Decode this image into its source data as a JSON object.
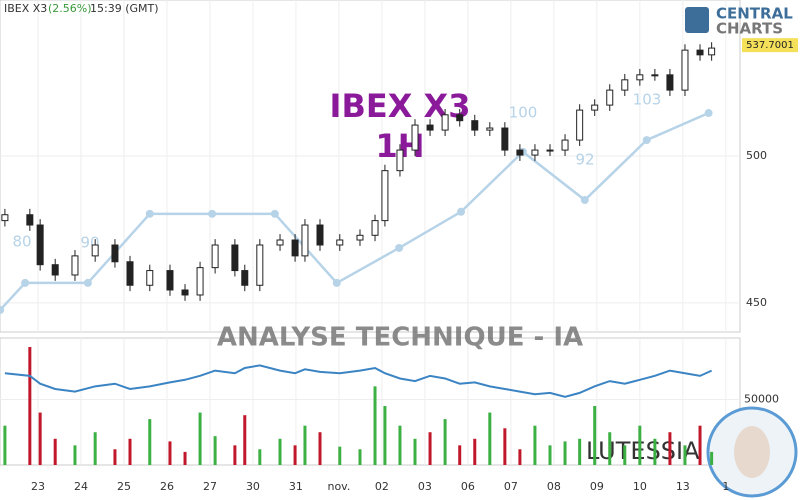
{
  "header": {
    "symbol": "IBEX X3",
    "change": "(2.56%)",
    "time": "15:39 (GMT)"
  },
  "logo": {
    "line1": "CENTRAL",
    "line2": "CHARTS"
  },
  "watermark": {
    "title": "IBEX X3",
    "timeframe": "1H",
    "caption": "ANALYSE TECHNIQUE - IA",
    "brand": "LUTESSIA"
  },
  "annotations": [
    "80",
    "90",
    "100",
    "92",
    "103"
  ],
  "chart_data": {
    "type": "candlestick",
    "x": [
      -0.77,
      -0.19,
      0.05,
      0.4,
      0.86,
      1.33,
      1.79,
      2.14,
      2.6,
      3.07,
      3.42,
      3.77,
      4.12,
      4.58,
      4.81,
      5.16,
      5.63,
      5.98,
      6.21,
      6.56,
      7.02,
      7.49,
      7.84,
      8.07,
      8.42,
      8.77,
      9.12,
      9.47,
      9.81,
      10.16,
      10.51,
      10.86,
      11.21,
      11.56,
      11.91,
      12.26,
      12.6,
      12.95,
      13.3,
      13.65,
      14,
      14.35,
      14.7,
      15.05,
      15.4,
      15.67
    ],
    "open": [
      478,
      480,
      476.5,
      463,
      459.5,
      466,
      469.7,
      464,
      456,
      461,
      454.4,
      452.7,
      462,
      469.7,
      461,
      456,
      469.7,
      471.4,
      466,
      476.5,
      469.7,
      471.4,
      473,
      478,
      495,
      502,
      510.5,
      508.8,
      514,
      512,
      508.8,
      509.5,
      502,
      500.3,
      502,
      502,
      505.4,
      515.6,
      517.3,
      522.4,
      525.9,
      527.6,
      527.6,
      522.4,
      536,
      534.4
    ],
    "high": [
      482,
      482,
      478.5,
      465,
      468,
      471.7,
      471.7,
      466,
      463,
      463,
      456.4,
      464,
      471.7,
      471.7,
      463,
      471.7,
      473.4,
      473.4,
      478.5,
      478.5,
      473.4,
      475,
      480,
      497,
      504,
      512.5,
      512.5,
      516,
      516,
      514,
      511.5,
      511.5,
      504,
      504,
      504,
      507.4,
      517.6,
      519.3,
      524.4,
      527.9,
      529.6,
      529.6,
      529.6,
      538,
      538,
      538.7
    ],
    "low": [
      476,
      474.5,
      461,
      457.5,
      457.5,
      464,
      462,
      454,
      454,
      452.4,
      450.7,
      450.7,
      460,
      459,
      454,
      454,
      467.7,
      464,
      464,
      467.7,
      467.7,
      469.4,
      471,
      476,
      493,
      500,
      506.8,
      506.8,
      510,
      506.8,
      506.8,
      500,
      498.3,
      498.3,
      500,
      500,
      503.4,
      513.6,
      515.3,
      520.4,
      523.9,
      525.6,
      520.4,
      520.4,
      532.4,
      532.4
    ],
    "close": [
      480,
      476.5,
      463,
      459.5,
      466,
      469.7,
      464,
      456,
      461,
      454.4,
      452.7,
      462,
      469.7,
      461,
      456,
      469.7,
      471.4,
      466,
      476.5,
      469.7,
      471.4,
      473,
      478,
      495,
      502,
      510.5,
      508.8,
      514,
      512,
      508.8,
      509.5,
      502,
      500.3,
      502,
      502,
      505.4,
      515.6,
      517.3,
      522.4,
      525.9,
      527.6,
      527.6,
      522.4,
      536,
      534.4,
      536.7
    ],
    "volume": [
      30000,
      90000,
      40000,
      20000,
      15000,
      25000,
      12000,
      20000,
      35000,
      18000,
      10000,
      40000,
      22000,
      15000,
      38000,
      12000,
      20000,
      15000,
      30000,
      25000,
      14000,
      12000,
      60000,
      45000,
      30000,
      20000,
      25000,
      35000,
      15000,
      20000,
      40000,
      28000,
      12000,
      30000,
      15000,
      18000,
      20000,
      45000,
      25000,
      15000,
      30000,
      20000,
      25000,
      15000,
      30000,
      10000
    ],
    "volume_ma": [
      70000,
      68000,
      62000,
      58000,
      56000,
      60000,
      62000,
      58000,
      60000,
      63000,
      65000,
      68000,
      72000,
      70000,
      74000,
      76000,
      72000,
      70000,
      73000,
      71000,
      70000,
      72000,
      74000,
      70000,
      66000,
      64000,
      68000,
      66000,
      62000,
      63000,
      60000,
      58000,
      56000,
      54000,
      55000,
      52000,
      55000,
      60000,
      64000,
      62000,
      65000,
      68000,
      72000,
      70000,
      68000,
      72000
    ],
    "indicator": {
      "x": [
        -0.88,
        -0.3,
        1.16,
        2.6,
        4.05,
        5.51,
        6.95,
        8.4,
        9.84,
        11.28,
        12.72,
        14.16,
        15.6
      ],
      "values": [
        447.6,
        456.8,
        456.8,
        480.3,
        480.3,
        480.3,
        456.8,
        468.7,
        481,
        501.4,
        485,
        505.4,
        514.6
      ],
      "color": "#b7d3e8"
    },
    "last": 537.7001,
    "xlim": [
      -0.884,
      16.33
    ],
    "xticks": [
      {
        "value": 0,
        "label": "23"
      },
      {
        "value": 1,
        "label": "24"
      },
      {
        "value": 2,
        "label": "25"
      },
      {
        "value": 3,
        "label": "26"
      },
      {
        "value": 4,
        "label": "27"
      },
      {
        "value": 5,
        "label": "30"
      },
      {
        "value": 6,
        "label": "31"
      },
      {
        "value": 7,
        "label": "nov."
      },
      {
        "value": 8,
        "label": "02"
      },
      {
        "value": 9,
        "label": "03"
      },
      {
        "value": 10,
        "label": "06"
      },
      {
        "value": 11,
        "label": "07"
      },
      {
        "value": 12,
        "label": "08"
      },
      {
        "value": 13,
        "label": "09"
      },
      {
        "value": 14,
        "label": "10"
      },
      {
        "value": 15,
        "label": "13"
      },
      {
        "value": 16,
        "label": "1"
      }
    ],
    "ylim": [
      440.1,
      553.06
    ],
    "yticks": [
      450,
      500
    ],
    "vlim": [
      0,
      96875
    ],
    "vticks": [
      50000
    ],
    "up_color": "#ffffff",
    "down_color": "#222222",
    "vol_up_color": "#3cb043",
    "vol_down_color": "#c0182a",
    "vol_ma_color": "#3b84c4",
    "grid": true
  }
}
